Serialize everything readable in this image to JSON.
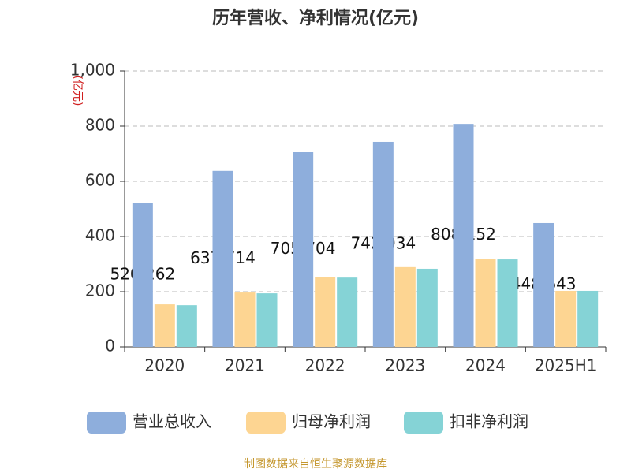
{
  "chart_data": {
    "type": "bar",
    "title": "历年营收、净利情况(亿元)",
    "y_label": "(亿元)",
    "source": "制图数据来自恒生聚源数据库",
    "categories": [
      "2020",
      "2021",
      "2022",
      "2023",
      "2024",
      "2025H1"
    ],
    "series": [
      {
        "name": "营业总收入",
        "color": "#8eaedc",
        "values": [
          520.262,
          637.714,
          705.704,
          742.934,
          808.152,
          448.643
        ]
      },
      {
        "name": "归母净利润",
        "color": "#fdd592",
        "values": [
          154,
          197,
          254,
          289,
          320,
          203
        ]
      },
      {
        "name": "扣非净利润",
        "color": "#85d3d6",
        "values": [
          151,
          194,
          251,
          283,
          317,
          203
        ]
      }
    ],
    "ylim": [
      0,
      1000
    ],
    "yticks": [
      0,
      200,
      400,
      600,
      800,
      {
        "value": 1000,
        "label": "1,000"
      }
    ],
    "grid": true
  }
}
